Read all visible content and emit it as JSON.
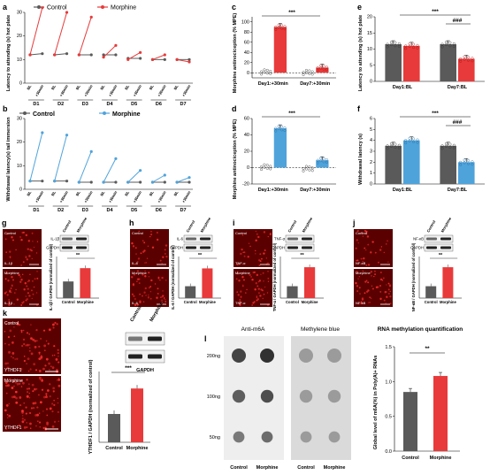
{
  "colors": {
    "control": "#5a5a5a",
    "morphine_red": "#e83a3a",
    "morphine_blue": "#4fa3db",
    "micro_bg": "#5b0000",
    "micro_dot": "#ff3030"
  },
  "panel_a": {
    "letter": "a",
    "legend": {
      "control": "Control",
      "morphine": "Morphine"
    },
    "ylabel": "Latency to attending (s) hot plate",
    "yticks": [
      "0",
      "10",
      "20",
      "30"
    ],
    "xlabels": [
      "BL",
      "+30min",
      "BL",
      "+30min",
      "BL",
      "+30min",
      "BL",
      "+30min",
      "BL",
      "+30min",
      "BL",
      "+30min",
      "BL",
      "+30min"
    ],
    "days": [
      "D1",
      "D2",
      "D3",
      "D4",
      "D5",
      "D6",
      "D7"
    ]
  },
  "panel_b": {
    "letter": "b",
    "legend": {
      "control": "Control",
      "morphine": "Morphine"
    },
    "ylabel": "Withdrawal latency(s) tail immersion",
    "yticks": [
      "0",
      "10",
      "20",
      "30"
    ],
    "xlabels": [
      "BL",
      "+30min",
      "BL",
      "+30min",
      "BL",
      "+30min",
      "BL",
      "+30min",
      "BL",
      "+30min",
      "BL",
      "+30min",
      "BL",
      "+30min"
    ],
    "days": [
      "D1",
      "D2",
      "D3",
      "D4",
      "D5",
      "D6",
      "D7"
    ]
  },
  "panel_c": {
    "letter": "c",
    "ylabel": "Morphine antinociception (% MPE)",
    "sig": "***",
    "yticks": [
      "0",
      "20",
      "40",
      "60",
      "80",
      "100"
    ],
    "xlabels": [
      "Day1:+30min",
      "Day7:+30min"
    ]
  },
  "panel_d": {
    "letter": "d",
    "ylabel": "Morphine antinociception (% MPE)",
    "sig": "***",
    "yticks": [
      "-20",
      "0",
      "20",
      "40",
      "60"
    ],
    "xlabels": [
      "Day1:+30min",
      "Day7:+30min"
    ]
  },
  "panel_e": {
    "letter": "e",
    "ylabel": "Latency to attending (s) hot plate",
    "sig1": "***",
    "sig2": "###",
    "yticks": [
      "0",
      "5",
      "10",
      "15",
      "20"
    ],
    "xlabels": [
      "Day1:BL",
      "Day7:BL"
    ]
  },
  "panel_f": {
    "letter": "f",
    "ylabel": "Withdrawal latency (s)",
    "sig1": "***",
    "sig2": "###",
    "yticks": [
      "0",
      "1",
      "2",
      "3",
      "4",
      "5",
      "6"
    ],
    "xlabels": [
      "Day1:BL",
      "Day7:BL"
    ]
  },
  "panel_g": {
    "letter": "g",
    "micro_top": "Control",
    "micro_bot": "Morphine",
    "micro_top_marker": "IL-1β",
    "micro_bot_marker": "IL-1β",
    "blot_cols": [
      "Control",
      "Morphine"
    ],
    "blot_rows": [
      "IL-1β",
      "GAPDH"
    ],
    "ylabel": "IL-1β / GAPDH (normalized of control)",
    "sig": "**",
    "xlabels": [
      "Control",
      "Morphine"
    ]
  },
  "panel_h": {
    "letter": "h",
    "micro_top": "Control",
    "micro_bot": "Morphine",
    "micro_top_marker": "IL-6",
    "micro_bot_marker": "IL-6",
    "blot_cols": [
      "Control",
      "Morphine"
    ],
    "blot_rows": [
      "IL-6",
      "GAPDH"
    ],
    "ylabel": "IL-6 / GAPDH (normalized of control)",
    "sig": "**",
    "xlabels": [
      "Control",
      "Morphine"
    ]
  },
  "panel_i": {
    "letter": "i",
    "micro_top": "Control",
    "micro_bot": "Morphine",
    "micro_top_marker": "TNF-α",
    "micro_bot_marker": "TNF-α",
    "blot_cols": [
      "Control",
      "Morphine"
    ],
    "blot_rows": [
      "TNF-α",
      "GAPDH"
    ],
    "ylabel": "TNF-α / GAPDH (normalized of control)",
    "sig": "**",
    "xlabels": [
      "Control",
      "Morphine"
    ]
  },
  "panel_j": {
    "letter": "j",
    "micro_top": "Control",
    "micro_bot": "Morphine",
    "micro_top_marker": "NF-κB",
    "micro_bot_marker": "NF-κB",
    "blot_cols": [
      "Control",
      "Morphine"
    ],
    "blot_rows": [
      "NF-κB",
      "GAPDH"
    ],
    "ylabel": "NF-κB / GAPDH (normalized of control)",
    "sig": "**",
    "xlabels": [
      "Control",
      "Morphine"
    ]
  },
  "panel_k": {
    "letter": "k",
    "micro_top": "Control",
    "micro_bot": "Morphine",
    "micro_top_marker": "YTHDF1",
    "micro_bot_marker": "YTHDF1",
    "blot_cols": [
      "Control",
      "Morphine"
    ],
    "blot_rows": [
      "YTHDF1",
      "GAPDH"
    ],
    "ylabel": "YTHDF1 / GAPDH (normalized of control)",
    "sig": "***",
    "xlabels": [
      "Control",
      "Morphine"
    ]
  },
  "panel_l": {
    "letter": "l",
    "col1": "Anti-m6A",
    "col2": "Methylene blue",
    "rows": [
      "200ng",
      "100ng",
      "50ng"
    ],
    "xlabels": [
      "Control",
      "Morphine",
      "Control",
      "Morphine"
    ]
  },
  "panel_m": {
    "title": "RNA methylation quantification",
    "ylabel": "Global level of m6A(%) in Poly(A)+ RNAs",
    "sig": "**",
    "yticks": [
      "0.0",
      "0.5",
      "1.0",
      "1.5"
    ],
    "xlabels": [
      "Control",
      "Morphine"
    ]
  },
  "chart_data": [
    {
      "type": "line",
      "x": [
        1,
        2,
        3,
        4,
        5,
        6,
        7,
        8,
        9,
        10,
        11,
        12,
        13,
        14
      ],
      "series": [
        {
          "name": "Control",
          "values": [
            12,
            12.5,
            12,
            12.5,
            12,
            12,
            12,
            12,
            10.5,
            10.5,
            10,
            10,
            10,
            10
          ]
        },
        {
          "name": "Morphine",
          "values": [
            12,
            32,
            12,
            30,
            12,
            28,
            11,
            16,
            10,
            13,
            10,
            12,
            10,
            9
          ]
        }
      ]
    },
    {
      "type": "line",
      "x": [
        1,
        2,
        3,
        4,
        5,
        6,
        7,
        8,
        9,
        10,
        11,
        12,
        13,
        14
      ],
      "series": [
        {
          "name": "Control",
          "values": [
            3.5,
            3.5,
            3.5,
            3.5,
            3,
            3,
            3,
            3,
            3,
            3,
            3,
            3,
            3,
            3
          ]
        },
        {
          "name": "Morphine",
          "values": [
            3.5,
            24,
            3.5,
            23,
            3,
            16,
            3,
            13,
            3,
            8,
            3,
            6,
            3,
            5
          ]
        }
      ]
    },
    {
      "type": "bar",
      "categories": [
        "Day1:+30min",
        "Day7:+30min"
      ],
      "series": [
        {
          "name": "Control",
          "values": [
            2,
            1
          ]
        },
        {
          "name": "Morphine",
          "values": [
            90,
            10
          ]
        }
      ],
      "ylim": [
        -10,
        110
      ]
    },
    {
      "type": "bar",
      "categories": [
        "Day1:+30min",
        "Day7:+30min"
      ],
      "series": [
        {
          "name": "Control",
          "values": [
            1,
            -1
          ]
        },
        {
          "name": "Morphine",
          "values": [
            48,
            9
          ]
        }
      ],
      "ylim": [
        -20,
        60
      ]
    },
    {
      "type": "bar",
      "categories": [
        "Day1:BL",
        "Day7:BL"
      ],
      "series": [
        {
          "name": "Control",
          "values": [
            11.5,
            11.5
          ]
        },
        {
          "name": "Morphine",
          "values": [
            11,
            7
          ]
        }
      ],
      "ylim": [
        0,
        20
      ]
    },
    {
      "type": "bar",
      "categories": [
        "Day1:BL",
        "Day7:BL"
      ],
      "series": [
        {
          "name": "Control",
          "values": [
            3.5,
            3.5
          ]
        },
        {
          "name": "Morphine",
          "values": [
            4,
            2
          ]
        }
      ],
      "ylim": [
        0,
        6
      ]
    },
    {
      "type": "bar",
      "categories": [
        "Control",
        "Morphine"
      ],
      "values": [
        1.0,
        1.8
      ],
      "ylim": [
        0,
        2.5
      ]
    },
    {
      "type": "bar",
      "categories": [
        "Control",
        "Morphine"
      ],
      "values": [
        1.0,
        2.5
      ],
      "ylim": [
        0,
        3.5
      ]
    },
    {
      "type": "bar",
      "categories": [
        "Control",
        "Morphine"
      ],
      "values": [
        1.0,
        2.6
      ],
      "ylim": [
        0,
        3.5
      ]
    },
    {
      "type": "bar",
      "categories": [
        "Control",
        "Morphine"
      ],
      "values": [
        1.0,
        2.6
      ],
      "ylim": [
        0,
        3.5
      ]
    },
    {
      "type": "bar",
      "categories": [
        "Control",
        "Morphine"
      ],
      "values": [
        1.0,
        1.9
      ],
      "ylim": [
        0,
        2.5
      ]
    },
    {
      "type": "bar",
      "categories": [
        "Control",
        "Morphine"
      ],
      "values": [
        0.85,
        1.08
      ],
      "ylim": [
        0,
        1.5
      ]
    }
  ]
}
